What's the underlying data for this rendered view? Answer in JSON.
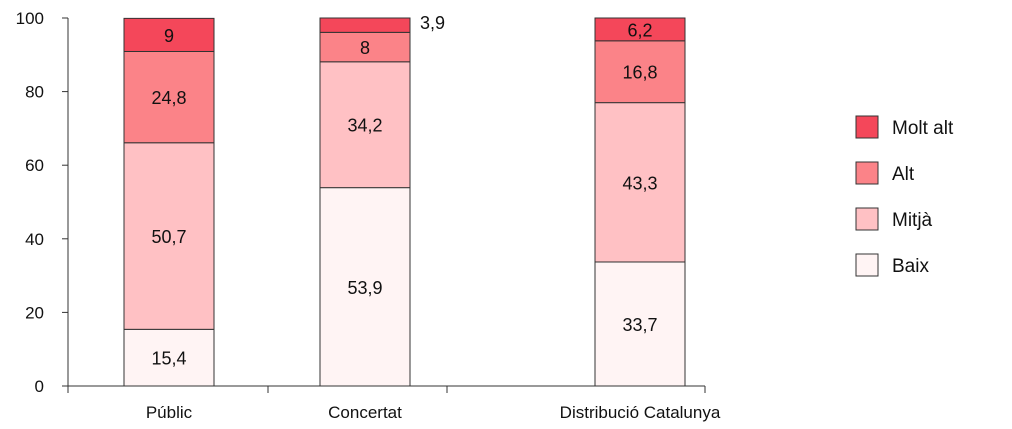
{
  "chart_data": {
    "type": "bar",
    "stacked": true,
    "categories": [
      "Públic",
      "Concertat",
      "Distribució Catalunya"
    ],
    "series": [
      {
        "name": "Baix",
        "values": [
          15.4,
          53.9,
          33.7
        ],
        "color": "#fff4f4"
      },
      {
        "name": "Mitjà",
        "values": [
          50.7,
          34.2,
          43.3
        ],
        "color": "#ffc1c4"
      },
      {
        "name": "Alt",
        "values": [
          24.8,
          8,
          16.8
        ],
        "color": "#fb8388"
      },
      {
        "name": "Molt alt",
        "values": [
          9,
          3.9,
          6.2
        ],
        "color": "#f4475a"
      }
    ],
    "value_labels": [
      [
        "15,4",
        "53,9",
        "33,7"
      ],
      [
        "50,7",
        "34,2",
        "43,3"
      ],
      [
        "24,8",
        "8",
        "16,8"
      ],
      [
        "9",
        "3,9",
        "6,2"
      ]
    ],
    "y_ticks": [
      "0",
      "20",
      "40",
      "60",
      "80",
      "100"
    ],
    "ylim": [
      0,
      100
    ],
    "grid": false,
    "legend_position": "right",
    "legend_order": [
      "Molt alt",
      "Alt",
      "Mitjà",
      "Baix"
    ]
  }
}
